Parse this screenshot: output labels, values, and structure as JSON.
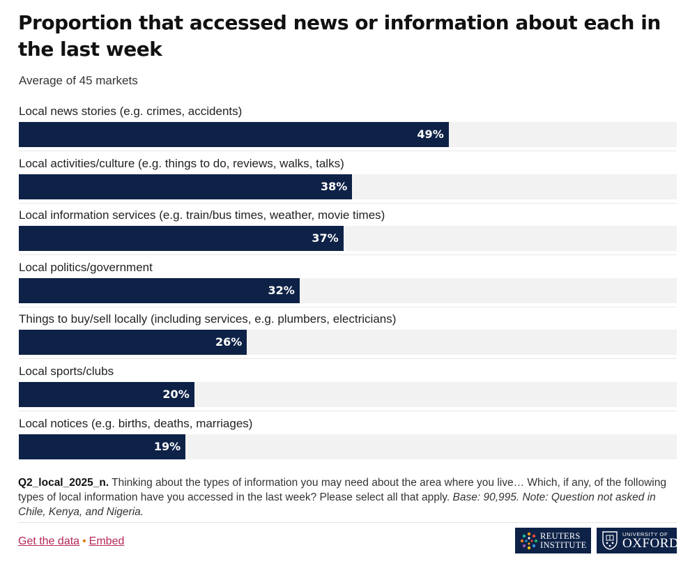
{
  "title": "Proportion that accessed news or information about each in the last week",
  "subtitle": "Average of 45 markets",
  "chart_data": {
    "type": "bar",
    "orientation": "horizontal",
    "title": "Proportion that accessed news or information about each in the last week",
    "subtitle": "Average of 45 markets",
    "xlim": [
      0,
      100
    ],
    "unit": "%",
    "categories": [
      "Local news stories (e.g. crimes, accidents)",
      "Local activities/culture (e.g. things to do, reviews, walks, talks)",
      "Local information services (e.g. train/bus times, weather, movie times)",
      "Local politics/government",
      "Things to buy/sell locally (including services, e.g. plumbers, electricians)",
      "Local sports/clubs",
      "Local notices (e.g. births, deaths, marriages)"
    ],
    "values": [
      49,
      38,
      37,
      32,
      26,
      20,
      19
    ],
    "value_labels": [
      "49%",
      "38%",
      "37%",
      "32%",
      "26%",
      "20%",
      "19%"
    ]
  },
  "note": {
    "question_id": "Q2_local_2025_n.",
    "question_text": " Thinking about the types of information you may need about the area where you live… Which, if any, of the following types of local information have you accessed in the last week? Please select all that apply. ",
    "base_note": "Base: 90,995. Note: Question not asked in Chile, Kenya, and Nigeria."
  },
  "footer": {
    "get_data_label": "Get the data",
    "separator": "•",
    "embed_label": "Embed",
    "reuters_line1": "REUTERS",
    "reuters_line2": "INSTITUTE",
    "oxford_line1": "UNIVERSITY OF",
    "oxford_line2": "OXFORD",
    "link_color": "#b5275a",
    "bar_color": "#0e2247",
    "track_color": "#f2f2f2"
  }
}
